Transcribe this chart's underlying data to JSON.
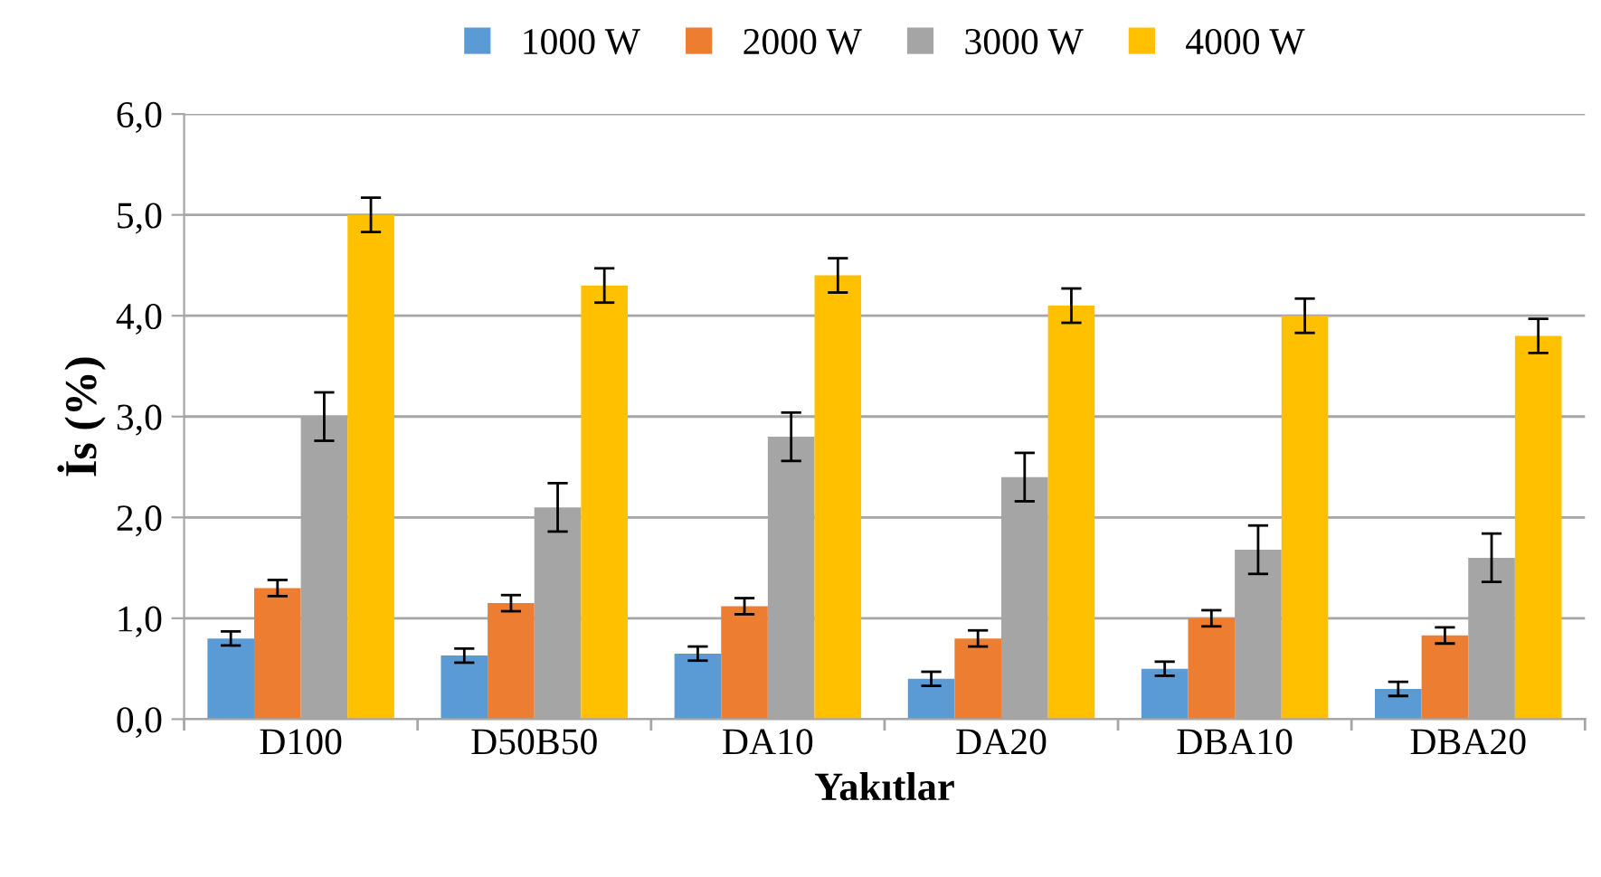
{
  "chart_data": {
    "type": "bar",
    "xlabel": "Yakıtlar",
    "ylabel": "İs (%)",
    "categories": [
      "D100",
      "D50B50",
      "DA10",
      "DA20",
      "DBA10",
      "DBA20"
    ],
    "series": [
      {
        "name": "1000 W",
        "color": "#5b9bd5",
        "values": [
          0.8,
          0.63,
          0.65,
          0.4,
          0.5,
          0.3
        ],
        "errors": [
          0.07,
          0.07,
          0.07,
          0.07,
          0.07,
          0.07
        ]
      },
      {
        "name": "2000 W",
        "color": "#ed7d31",
        "values": [
          1.3,
          1.15,
          1.12,
          0.8,
          1.0,
          0.83
        ],
        "errors": [
          0.08,
          0.08,
          0.08,
          0.08,
          0.08,
          0.08
        ]
      },
      {
        "name": "3000 W",
        "color": "#a5a5a5",
        "values": [
          3.0,
          2.1,
          2.8,
          2.4,
          1.68,
          1.6
        ],
        "errors": [
          0.24,
          0.24,
          0.24,
          0.24,
          0.24,
          0.24
        ]
      },
      {
        "name": "4000 W",
        "color": "#ffc000",
        "values": [
          5.0,
          4.3,
          4.4,
          4.1,
          4.0,
          3.8
        ],
        "errors": [
          0.17,
          0.17,
          0.17,
          0.17,
          0.17,
          0.17
        ]
      }
    ],
    "ylim": [
      0,
      6
    ],
    "yticks": [
      {
        "value": 0,
        "label": "0,0"
      },
      {
        "value": 1,
        "label": "1,0"
      },
      {
        "value": 2,
        "label": "2,0"
      },
      {
        "value": 3,
        "label": "3,0"
      },
      {
        "value": 4,
        "label": "4,0"
      },
      {
        "value": 5,
        "label": "5,0"
      },
      {
        "value": 6,
        "label": "6,0"
      }
    ],
    "grid": "y",
    "legend": "top"
  }
}
